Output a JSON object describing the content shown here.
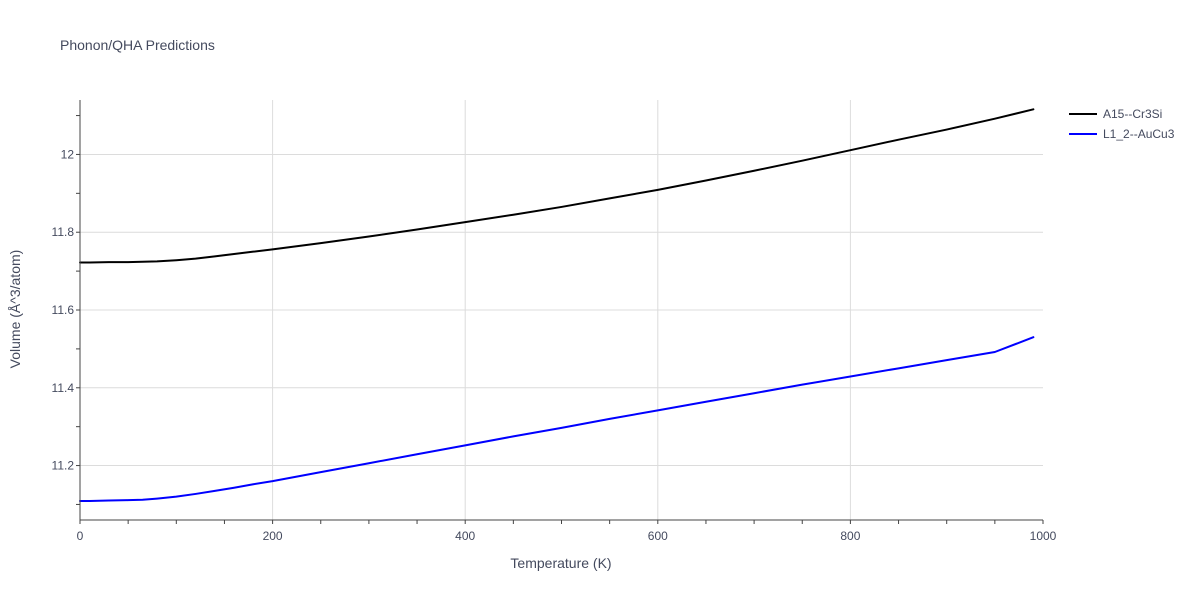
{
  "chart_data": {
    "type": "line",
    "title": "Phonon/QHA Predictions",
    "xlabel": "Temperature (K)",
    "ylabel": "Volume (Å^3/atom)",
    "xlim": [
      0,
      1000
    ],
    "ylim": [
      11.06,
      12.14
    ],
    "xticks": [
      0,
      200,
      400,
      600,
      800,
      1000
    ],
    "xtick_labels": [
      "0",
      "200",
      "400",
      "600",
      "800",
      "1000"
    ],
    "yticks": [
      11.2,
      11.4,
      11.6,
      11.8,
      12.0
    ],
    "ytick_labels": [
      "11.2",
      "11.4",
      "11.6",
      "11.8",
      "12"
    ],
    "grid": true,
    "legend_position": "top-right",
    "series": [
      {
        "name": "A15--Cr3Si",
        "color": "#000000",
        "x": [
          0,
          10,
          30,
          50,
          65,
          80,
          100,
          120,
          140,
          160,
          180,
          200,
          250,
          300,
          350,
          400,
          450,
          500,
          550,
          600,
          650,
          700,
          750,
          800,
          850,
          900,
          950,
          990
        ],
        "y": [
          11.722,
          11.722,
          11.723,
          11.723,
          11.724,
          11.725,
          11.728,
          11.732,
          11.738,
          11.744,
          11.75,
          11.756,
          11.772,
          11.789,
          11.807,
          11.826,
          11.845,
          11.865,
          11.887,
          11.909,
          11.933,
          11.958,
          11.984,
          12.011,
          12.038,
          12.064,
          12.092,
          12.116
        ]
      },
      {
        "name": "L1_2--AuCu3",
        "color": "#0000ff",
        "x": [
          0,
          10,
          30,
          50,
          65,
          80,
          100,
          120,
          140,
          160,
          180,
          200,
          250,
          300,
          350,
          400,
          450,
          500,
          550,
          600,
          650,
          700,
          750,
          800,
          850,
          900,
          950,
          990
        ],
        "y": [
          11.109,
          11.109,
          11.11,
          11.111,
          11.112,
          11.115,
          11.12,
          11.127,
          11.135,
          11.143,
          11.152,
          11.16,
          11.183,
          11.206,
          11.229,
          11.252,
          11.275,
          11.297,
          11.32,
          11.342,
          11.364,
          11.386,
          11.408,
          11.429,
          11.45,
          11.471,
          11.492,
          11.53
        ]
      }
    ]
  }
}
